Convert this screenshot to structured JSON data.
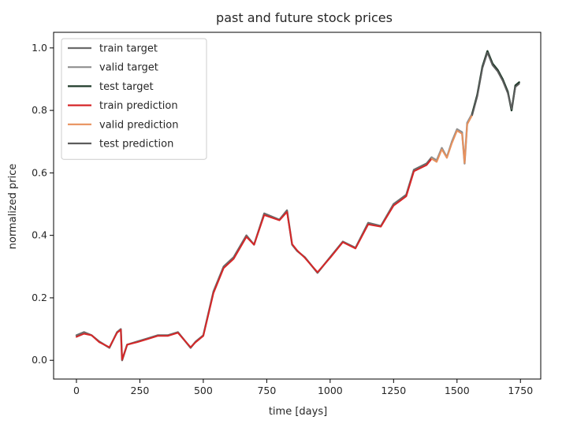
{
  "chart_data": {
    "type": "line",
    "title": "past and future stock prices",
    "xlabel": "time [days]",
    "ylabel": "normalized price",
    "xlim": [
      -90,
      1830
    ],
    "ylim": [
      -0.06,
      1.05
    ],
    "xticks": [
      0,
      250,
      500,
      750,
      1000,
      1250,
      1500,
      1750
    ],
    "yticks": [
      0.0,
      0.2,
      0.4,
      0.6,
      0.8,
      1.0
    ],
    "xtick_labels": [
      "0",
      "250",
      "500",
      "750",
      "1000",
      "1250",
      "1500",
      "1750"
    ],
    "ytick_labels": [
      "0.0",
      "0.2",
      "0.4",
      "0.6",
      "0.8",
      "1.0"
    ],
    "grid": false,
    "legend_position": "upper-left",
    "series": [
      {
        "name": "train target",
        "color": "#6b6b6b",
        "x": [
          0,
          30,
          60,
          90,
          130,
          160,
          175,
          180,
          200,
          240,
          280,
          320,
          360,
          400,
          450,
          470,
          500,
          540,
          580,
          620,
          670,
          700,
          740,
          800,
          830,
          850,
          870,
          900,
          950,
          1000,
          1050,
          1100,
          1150,
          1200,
          1250,
          1300,
          1330,
          1380,
          1400
        ],
        "y": [
          0.08,
          0.09,
          0.08,
          0.06,
          0.04,
          0.09,
          0.1,
          0.0,
          0.05,
          0.06,
          0.07,
          0.08,
          0.08,
          0.09,
          0.04,
          0.06,
          0.08,
          0.22,
          0.3,
          0.33,
          0.4,
          0.37,
          0.47,
          0.45,
          0.48,
          0.37,
          0.35,
          0.33,
          0.28,
          0.33,
          0.38,
          0.36,
          0.44,
          0.43,
          0.5,
          0.53,
          0.61,
          0.63,
          0.65
        ]
      },
      {
        "name": "valid target",
        "color": "#8f8f8f",
        "x": [
          1400,
          1420,
          1440,
          1460,
          1480,
          1500,
          1520,
          1530,
          1540,
          1560
        ],
        "y": [
          0.65,
          0.64,
          0.68,
          0.65,
          0.7,
          0.74,
          0.73,
          0.63,
          0.76,
          0.79
        ]
      },
      {
        "name": "test target",
        "color": "#1e3a29",
        "x": [
          1560,
          1580,
          1600,
          1620,
          1640,
          1660,
          1680,
          1700,
          1715,
          1730,
          1745
        ],
        "y": [
          0.79,
          0.85,
          0.94,
          0.99,
          0.95,
          0.93,
          0.9,
          0.86,
          0.8,
          0.88,
          0.89
        ]
      },
      {
        "name": "train prediction",
        "color": "#d62728",
        "x": [
          0,
          30,
          60,
          90,
          130,
          160,
          175,
          180,
          200,
          240,
          280,
          320,
          360,
          400,
          450,
          470,
          500,
          540,
          580,
          620,
          670,
          700,
          740,
          800,
          830,
          850,
          870,
          900,
          950,
          1000,
          1050,
          1100,
          1150,
          1200,
          1250,
          1300,
          1330,
          1380,
          1400
        ],
        "y": [
          0.075,
          0.085,
          0.08,
          0.058,
          0.042,
          0.088,
          0.098,
          0.002,
          0.05,
          0.058,
          0.068,
          0.078,
          0.078,
          0.088,
          0.042,
          0.058,
          0.078,
          0.215,
          0.295,
          0.325,
          0.395,
          0.37,
          0.465,
          0.448,
          0.475,
          0.372,
          0.352,
          0.328,
          0.282,
          0.328,
          0.378,
          0.358,
          0.435,
          0.428,
          0.495,
          0.525,
          0.605,
          0.625,
          0.645
        ]
      },
      {
        "name": "valid prediction",
        "color": "#e8915d",
        "x": [
          1400,
          1420,
          1440,
          1460,
          1480,
          1500,
          1520,
          1530,
          1540,
          1560
        ],
        "y": [
          0.645,
          0.635,
          0.675,
          0.648,
          0.695,
          0.735,
          0.725,
          0.632,
          0.755,
          0.785
        ]
      },
      {
        "name": "test prediction",
        "color": "#5c5c5c",
        "x": [
          1560,
          1580,
          1600,
          1620,
          1640,
          1660,
          1680,
          1700,
          1715,
          1730,
          1745
        ],
        "y": [
          0.785,
          0.845,
          0.935,
          0.985,
          0.945,
          0.925,
          0.895,
          0.855,
          0.805,
          0.875,
          0.885
        ]
      }
    ]
  }
}
